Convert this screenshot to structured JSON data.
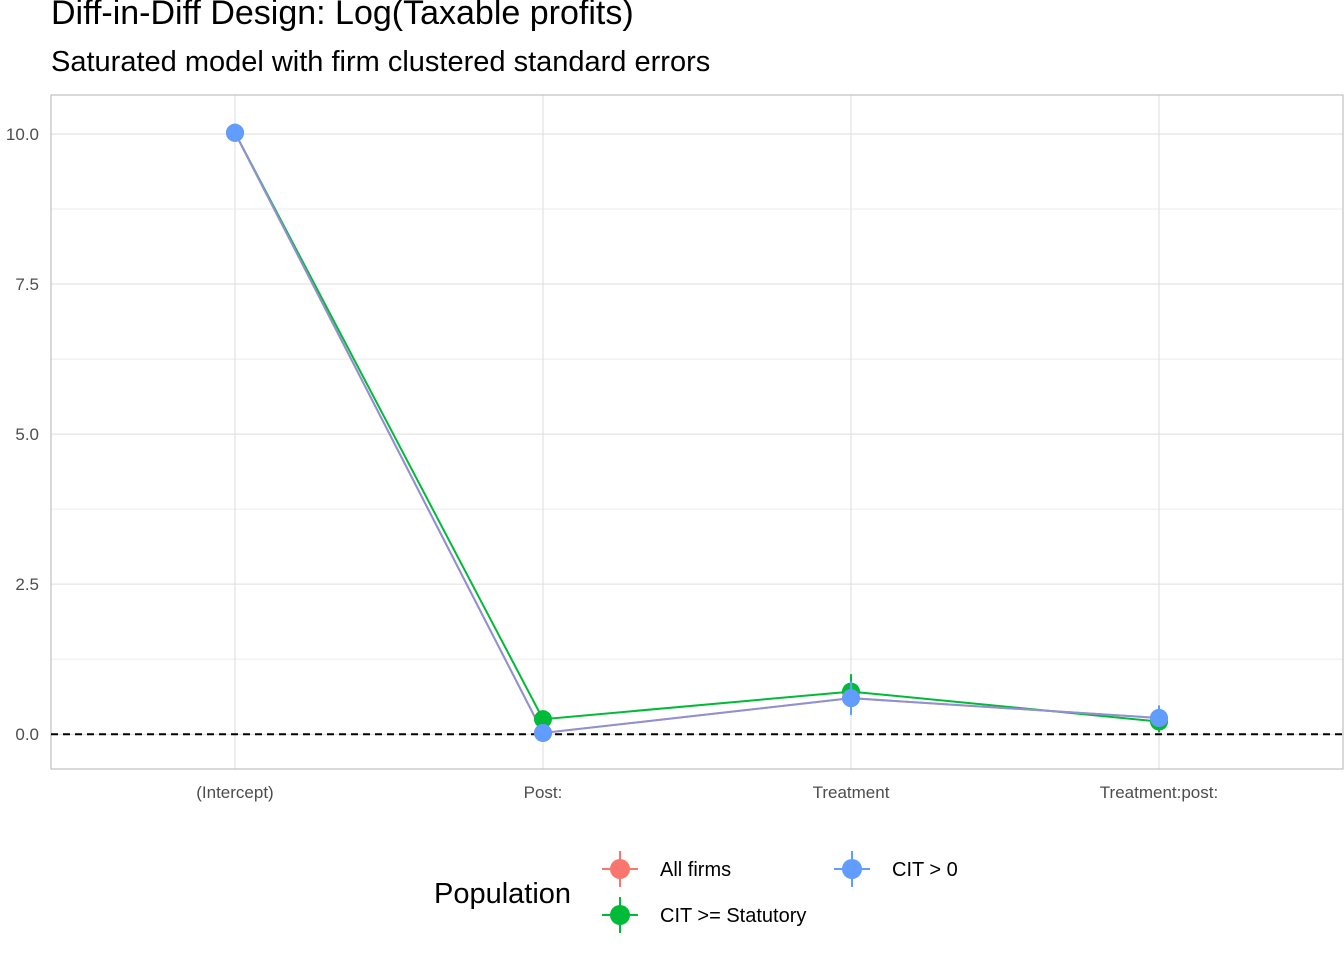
{
  "chart_data": {
    "type": "line",
    "title": "Diff-in-Diff Design: Log(Taxable profits)",
    "subtitle": "Saturated model with firm clustered standard errors",
    "categories": [
      "(Intercept)",
      "Post:",
      "Treatment",
      "Treatment:post:"
    ],
    "ylim": [
      -0.58,
      10.65
    ],
    "yticks": [
      0.0,
      2.5,
      5.0,
      7.5,
      10.0
    ],
    "ytick_labels": [
      "0.0",
      "2.5",
      "5.0",
      "7.5",
      "10.0"
    ],
    "reference_line": 0,
    "grid": true,
    "legend": {
      "title": "Population",
      "position": "bottom"
    },
    "series": [
      {
        "name": "All firms",
        "color": "#F8766D",
        "values": [
          10.02,
          0.02,
          0.6,
          0.27
        ],
        "lower": [
          10.0,
          0.0,
          0.45,
          0.15
        ],
        "upper": [
          10.04,
          0.04,
          0.75,
          0.39
        ]
      },
      {
        "name": "CIT >= Statutory",
        "color": "#00BA38",
        "values": [
          10.02,
          0.25,
          0.71,
          0.21
        ],
        "lower": [
          9.99,
          0.17,
          0.48,
          0.03
        ],
        "upper": [
          10.05,
          0.33,
          1.0,
          0.39
        ]
      },
      {
        "name": "CIT > 0",
        "color": "#619CFF",
        "values": [
          10.02,
          0.02,
          0.6,
          0.27
        ],
        "lower": [
          10.0,
          -0.02,
          0.32,
          0.12
        ],
        "upper": [
          10.04,
          0.06,
          0.88,
          0.48
        ]
      }
    ]
  }
}
